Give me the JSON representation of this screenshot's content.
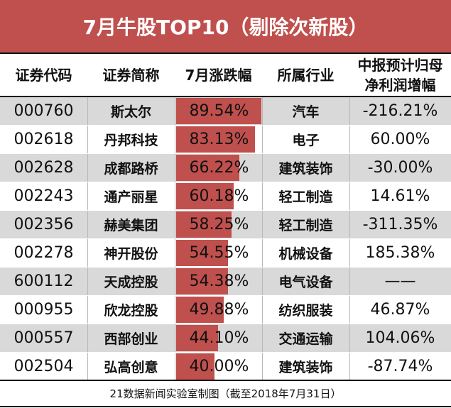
{
  "title": "7月牛股TOP10（剔除次新股）",
  "colors": {
    "accent": "#c0504d",
    "stripe": "#d9d9d9"
  },
  "headers": [
    "证券代码",
    "证券简称",
    "7月涨跌幅",
    "所属行业",
    "中报预计归母\n净利润增幅"
  ],
  "headers_split": {
    "h4_line1": "中报预计归母",
    "h4_line2": "净利润增幅"
  },
  "rows": [
    {
      "code": "000760",
      "name": "斯太尔",
      "change": "89.54%",
      "change_value": 89.54,
      "industry": "汽车",
      "profit_growth": "-216.21%"
    },
    {
      "code": "002618",
      "name": "丹邦科技",
      "change": "83.13%",
      "change_value": 83.13,
      "industry": "电子",
      "profit_growth": "60.00%"
    },
    {
      "code": "002628",
      "name": "成都路桥",
      "change": "66.22%",
      "change_value": 66.22,
      "industry": "建筑装饰",
      "profit_growth": "-30.00%"
    },
    {
      "code": "002243",
      "name": "通产丽星",
      "change": "60.18%",
      "change_value": 60.18,
      "industry": "轻工制造",
      "profit_growth": "14.61%"
    },
    {
      "code": "002356",
      "name": "赫美集团",
      "change": "58.25%",
      "change_value": 58.25,
      "industry": "轻工制造",
      "profit_growth": "-311.35%"
    },
    {
      "code": "002278",
      "name": "神开股份",
      "change": "54.55%",
      "change_value": 54.55,
      "industry": "机械设备",
      "profit_growth": "185.38%"
    },
    {
      "code": "600112",
      "name": "天成控股",
      "change": "54.38%",
      "change_value": 54.38,
      "industry": "电气设备",
      "profit_growth": "——"
    },
    {
      "code": "000955",
      "name": "欣龙控股",
      "change": "49.88%",
      "change_value": 49.88,
      "industry": "纺织服装",
      "profit_growth": "46.87%"
    },
    {
      "code": "000557",
      "name": "西部创业",
      "change": "44.10%",
      "change_value": 44.1,
      "industry": "交通运输",
      "profit_growth": "104.06%"
    },
    {
      "code": "002504",
      "name": "弘高创意",
      "change": "40.00%",
      "change_value": 40.0,
      "industry": "建筑装饰",
      "profit_growth": "-87.74%"
    }
  ],
  "footer": "21数据新闻实验室制图（截至2018年7月31日）",
  "chart_data": {
    "type": "table",
    "title": "7月牛股TOP10（剔除次新股）",
    "columns": [
      "证券代码",
      "证券简称",
      "7月涨跌幅",
      "所属行业",
      "中报预计归母净利润增幅"
    ],
    "categories": [
      "斯太尔",
      "丹邦科技",
      "成都路桥",
      "通产丽星",
      "赫美集团",
      "神开股份",
      "天成控股",
      "欣龙控股",
      "西部创业",
      "弘高创意"
    ],
    "series": [
      {
        "name": "7月涨跌幅(%)",
        "values": [
          89.54,
          83.13,
          66.22,
          60.18,
          58.25,
          54.55,
          54.38,
          49.88,
          44.1,
          40.0
        ]
      },
      {
        "name": "中报预计归母净利润增幅(%)",
        "values": [
          -216.21,
          60.0,
          -30.0,
          14.61,
          -311.35,
          185.38,
          null,
          46.87,
          104.06,
          -87.74
        ]
      }
    ],
    "codes": [
      "000760",
      "002618",
      "002628",
      "002243",
      "002356",
      "002278",
      "600112",
      "000955",
      "000557",
      "002504"
    ],
    "industries": [
      "汽车",
      "电子",
      "建筑装饰",
      "轻工制造",
      "轻工制造",
      "机械设备",
      "电气设备",
      "纺织服装",
      "交通运输",
      "建筑装饰"
    ],
    "annotations": [
      "21数据新闻实验室制图（截至2018年7月31日）"
    ]
  }
}
